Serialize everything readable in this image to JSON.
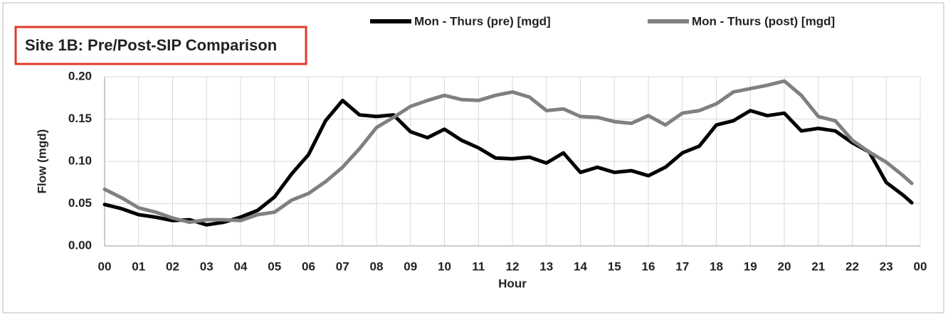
{
  "chart_data": {
    "type": "line",
    "title": "Site 1B: Pre/Post-SIP Comparison",
    "x_label": "Hour",
    "y_label": "Flow (mgd)",
    "x": [
      0,
      0.5,
      1,
      1.5,
      2,
      2.5,
      3,
      3.5,
      4,
      4.5,
      5,
      5.5,
      6,
      6.5,
      7,
      7.5,
      8,
      8.5,
      9,
      9.5,
      10,
      10.5,
      11,
      11.5,
      12,
      12.5,
      13,
      13.5,
      14,
      14.5,
      15,
      15.5,
      16,
      16.5,
      17,
      17.5,
      18,
      18.5,
      19,
      19.5,
      20,
      20.5,
      21,
      21.5,
      22,
      22.5,
      23,
      23.5,
      23.75
    ],
    "series": [
      {
        "name": "Mon - Thurs (pre) [mgd]",
        "color": "#000000",
        "values": [
          0.049,
          0.044,
          0.037,
          0.034,
          0.03,
          0.031,
          0.025,
          0.028,
          0.034,
          0.042,
          0.058,
          0.085,
          0.108,
          0.148,
          0.172,
          0.155,
          0.153,
          0.155,
          0.135,
          0.128,
          0.138,
          0.125,
          0.116,
          0.104,
          0.103,
          0.105,
          0.098,
          0.11,
          0.087,
          0.093,
          0.087,
          0.089,
          0.083,
          0.093,
          0.11,
          0.118,
          0.143,
          0.148,
          0.16,
          0.154,
          0.157,
          0.136,
          0.139,
          0.136,
          0.122,
          0.111,
          0.075,
          0.06,
          0.051
        ]
      },
      {
        "name": "Mon - Thurs (post) [mgd]",
        "color": "#808080",
        "values": [
          0.067,
          0.057,
          0.045,
          0.04,
          0.033,
          0.028,
          0.031,
          0.031,
          0.03,
          0.037,
          0.04,
          0.054,
          0.062,
          0.076,
          0.093,
          0.115,
          0.14,
          0.152,
          0.165,
          0.172,
          0.178,
          0.173,
          0.172,
          0.178,
          0.182,
          0.176,
          0.16,
          0.162,
          0.153,
          0.152,
          0.147,
          0.145,
          0.154,
          0.143,
          0.157,
          0.16,
          0.168,
          0.182,
          0.186,
          0.19,
          0.195,
          0.178,
          0.153,
          0.148,
          0.125,
          0.111,
          0.099,
          0.083,
          0.074
        ]
      }
    ],
    "xlim": [
      0,
      24
    ],
    "xticks": [
      {
        "value": 0,
        "label": "00"
      },
      {
        "value": 1,
        "label": "01"
      },
      {
        "value": 2,
        "label": "02"
      },
      {
        "value": 3,
        "label": "03"
      },
      {
        "value": 4,
        "label": "04"
      },
      {
        "value": 5,
        "label": "05"
      },
      {
        "value": 6,
        "label": "06"
      },
      {
        "value": 7,
        "label": "07"
      },
      {
        "value": 8,
        "label": "08"
      },
      {
        "value": 9,
        "label": "09"
      },
      {
        "value": 10,
        "label": "10"
      },
      {
        "value": 11,
        "label": "11"
      },
      {
        "value": 12,
        "label": "12"
      },
      {
        "value": 13,
        "label": "13"
      },
      {
        "value": 14,
        "label": "14"
      },
      {
        "value": 15,
        "label": "15"
      },
      {
        "value": 16,
        "label": "16"
      },
      {
        "value": 17,
        "label": "17"
      },
      {
        "value": 18,
        "label": "18"
      },
      {
        "value": 19,
        "label": "19"
      },
      {
        "value": 20,
        "label": "20"
      },
      {
        "value": 21,
        "label": "21"
      },
      {
        "value": 22,
        "label": "22"
      },
      {
        "value": 23,
        "label": "23"
      },
      {
        "value": 24,
        "label": "00"
      }
    ],
    "ylim": [
      0,
      0.2
    ],
    "yticks": [
      {
        "value": 0,
        "label": "0.00"
      },
      {
        "value": 0.05,
        "label": "0.05"
      },
      {
        "value": 0.1,
        "label": "0.10"
      },
      {
        "value": 0.15,
        "label": "0.15"
      },
      {
        "value": 0.2,
        "label": "0.20"
      }
    ],
    "grid": true,
    "legend": "top-right"
  }
}
